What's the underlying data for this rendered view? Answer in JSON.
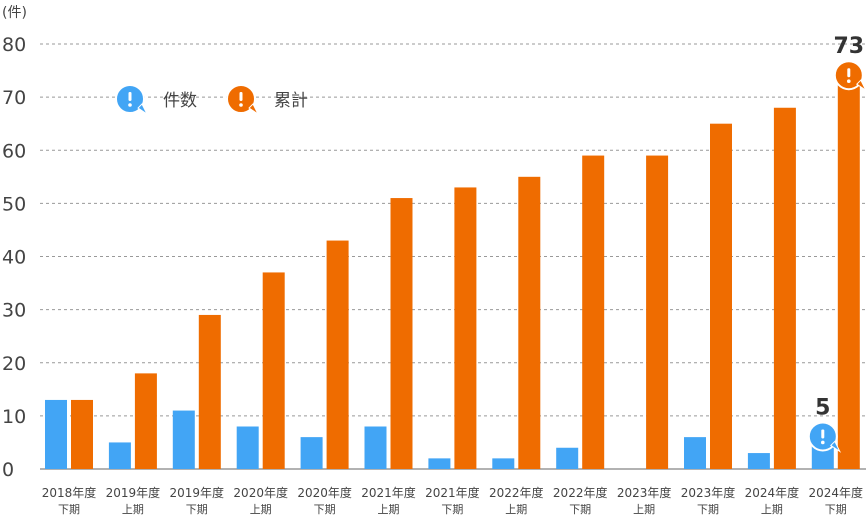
{
  "chart_data": {
    "type": "bar",
    "unit_label": "(件)",
    "categories": [
      [
        "2018年度",
        "下期"
      ],
      [
        "2019年度",
        "上期"
      ],
      [
        "2019年度",
        "下期"
      ],
      [
        "2020年度",
        "上期"
      ],
      [
        "2020年度",
        "下期"
      ],
      [
        "2021年度",
        "上期"
      ],
      [
        "2021年度",
        "下期"
      ],
      [
        "2022年度",
        "上期"
      ],
      [
        "2022年度",
        "下期"
      ],
      [
        "2023年度",
        "上期"
      ],
      [
        "2023年度",
        "下期"
      ],
      [
        "2024年度",
        "上期"
      ],
      [
        "2024年度",
        "下期"
      ]
    ],
    "series": [
      {
        "name": "件数",
        "color": "#42A5F5",
        "values": [
          13,
          5,
          11,
          8,
          6,
          8,
          2,
          2,
          4,
          0,
          6,
          3,
          5
        ]
      },
      {
        "name": "累計",
        "color": "#EF6C00",
        "values": [
          13,
          18,
          29,
          37,
          43,
          51,
          53,
          55,
          59,
          59,
          65,
          68,
          73
        ]
      }
    ],
    "ylim": [
      0,
      80
    ],
    "yticks": [
      0,
      10,
      20,
      30,
      40,
      50,
      60,
      70,
      80
    ],
    "grid": true,
    "legend": "top-left",
    "legend_icon": "exclamation-bubble-icon",
    "callouts": [
      {
        "series": "件数",
        "category_index": 12,
        "label": "5"
      },
      {
        "series": "累計",
        "category_index": 12,
        "label": "73"
      }
    ]
  }
}
